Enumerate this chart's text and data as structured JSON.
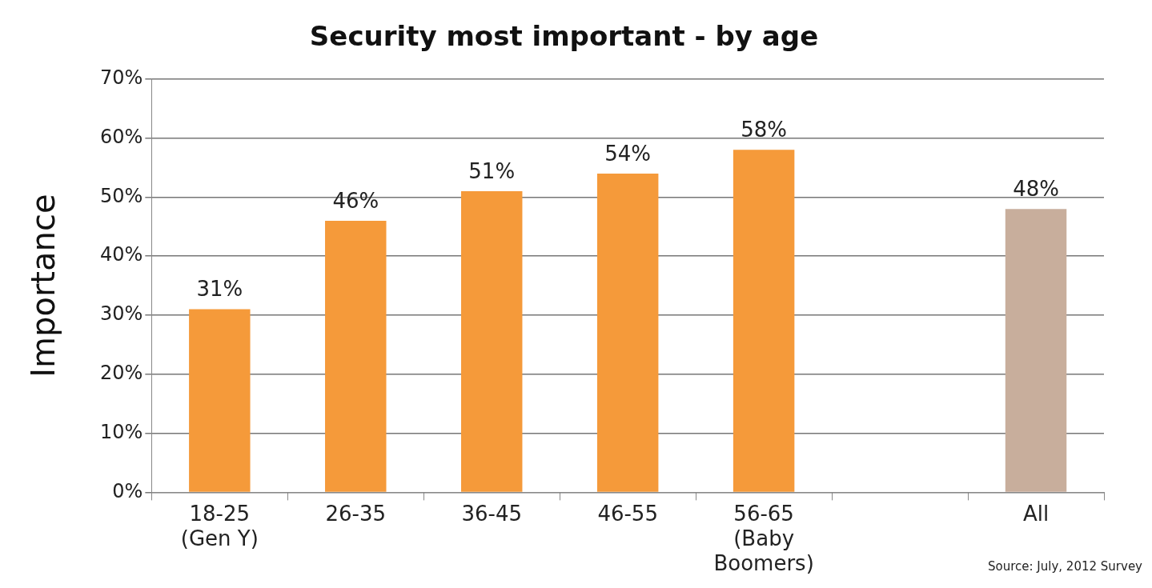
{
  "chart_data": {
    "type": "bar",
    "title": "Security most important - by age",
    "ylabel": "Importance",
    "categories": [
      "18-25\n(Gen Y)",
      "26-35",
      "36-45",
      "46-55",
      "56-65\n(Baby\nBoomers)",
      null,
      "All"
    ],
    "values": [
      31,
      46,
      51,
      54,
      58,
      null,
      48
    ],
    "colors": [
      "#f59a3a",
      "#f59a3a",
      "#f59a3a",
      "#f59a3a",
      "#f59a3a",
      "#f59a3a",
      "#c8ae9c"
    ],
    "value_labels": [
      "31%",
      "46%",
      "51%",
      "54%",
      "58%",
      null,
      "48%"
    ],
    "ylim": [
      0,
      70
    ],
    "yticks": [
      {
        "value": 0,
        "label": "0%"
      },
      {
        "value": 10,
        "label": "10%"
      },
      {
        "value": 20,
        "label": "20%"
      },
      {
        "value": 30,
        "label": "30%"
      },
      {
        "value": 40,
        "label": "40%"
      },
      {
        "value": 50,
        "label": "50%"
      },
      {
        "value": 60,
        "label": "60%"
      },
      {
        "value": 70,
        "label": "70%"
      }
    ],
    "grid": "y",
    "legend": false,
    "annotations": [
      "Source: July, 2012 Survey"
    ]
  }
}
